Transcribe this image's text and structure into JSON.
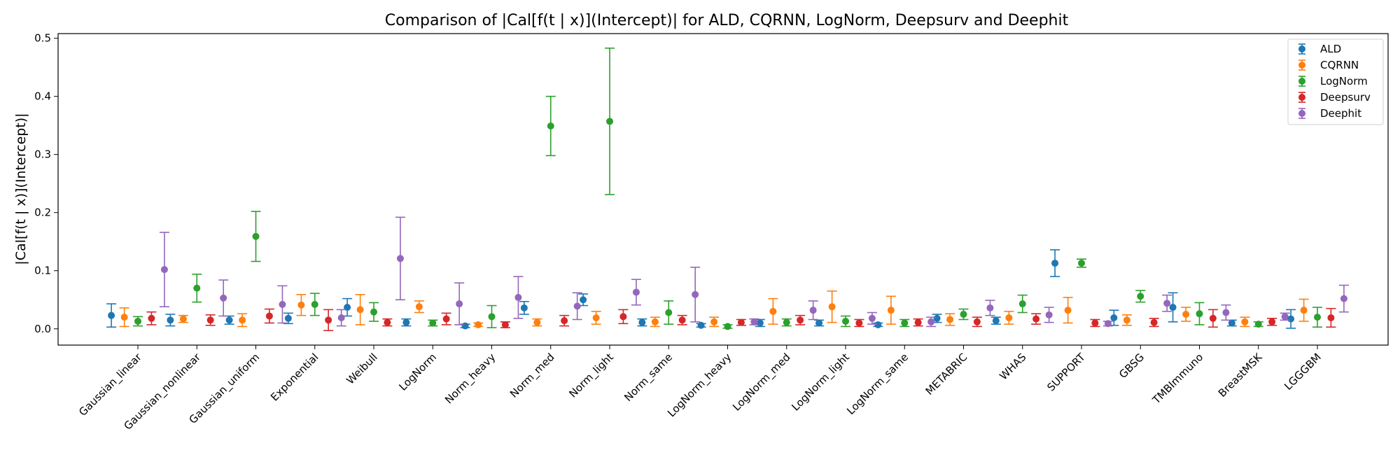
{
  "chart_data": {
    "type": "scatter",
    "title": "Comparison of |Cal[f(t | x)](Intercept)| for ALD, CQRNN, LogNorm, Deepsurv and Deephit",
    "xlabel": "",
    "ylabel": "|Cal[f(t | x)](Intercept)|",
    "ylim": [
      -0.028,
      0.508
    ],
    "yticks": [
      0.0,
      0.1,
      0.2,
      0.3,
      0.4,
      0.5
    ],
    "ytick_labels": [
      "0.0",
      "0.1",
      "0.2",
      "0.3",
      "0.4",
      "0.5"
    ],
    "grid": false,
    "legend_position": "top-right",
    "error_bars": true,
    "categories": [
      "Gaussian_linear",
      "Gaussian_nonlinear",
      "Gaussian_uniform",
      "Exponential",
      "Weibull",
      "LogNorm",
      "Norm_heavy",
      "Norm_med",
      "Norm_light",
      "Norm_same",
      "LogNorm_heavy",
      "LogNorm_med",
      "LogNorm_light",
      "LogNorm_same",
      "METABRIC",
      "WHAS",
      "SUPPORT",
      "GBSG",
      "TMBImmuno",
      "BreastMSK",
      "LGGGBM"
    ],
    "series": [
      {
        "name": "ALD",
        "color": "#1f77b4",
        "values": [
          0.023,
          0.015,
          0.015,
          0.018,
          0.037,
          0.011,
          0.005,
          0.036,
          0.05,
          0.011,
          0.006,
          0.01,
          0.01,
          0.007,
          0.018,
          0.014,
          0.113,
          0.019,
          0.037,
          0.01,
          0.017
        ],
        "errors": [
          0.02,
          0.01,
          0.007,
          0.009,
          0.015,
          0.006,
          0.003,
          0.011,
          0.01,
          0.006,
          0.003,
          0.006,
          0.005,
          0.003,
          0.007,
          0.006,
          0.023,
          0.013,
          0.025,
          0.005,
          0.016
        ]
      },
      {
        "name": "CQRNN",
        "color": "#ff7f0e",
        "values": [
          0.02,
          0.017,
          0.015,
          0.041,
          0.033,
          0.038,
          0.007,
          0.011,
          0.019,
          0.012,
          0.012,
          0.03,
          0.038,
          0.032,
          0.016,
          0.019,
          0.032,
          0.015,
          0.025,
          0.012,
          0.032
        ],
        "errors": [
          0.016,
          0.006,
          0.011,
          0.018,
          0.026,
          0.01,
          0.003,
          0.006,
          0.011,
          0.008,
          0.008,
          0.022,
          0.027,
          0.024,
          0.01,
          0.011,
          0.022,
          0.009,
          0.012,
          0.008,
          0.019
        ]
      },
      {
        "name": "LogNorm",
        "color": "#2ca02c",
        "values": [
          0.013,
          0.07,
          0.159,
          0.042,
          0.029,
          0.01,
          0.021,
          0.349,
          0.357,
          0.028,
          0.004,
          0.011,
          0.013,
          0.01,
          0.025,
          0.043,
          0.113,
          0.056,
          0.026,
          0.008,
          0.02
        ],
        "errors": [
          0.008,
          0.024,
          0.043,
          0.019,
          0.016,
          0.005,
          0.019,
          0.051,
          0.126,
          0.02,
          0.003,
          0.006,
          0.009,
          0.006,
          0.009,
          0.015,
          0.007,
          0.01,
          0.019,
          0.004,
          0.017
        ]
      },
      {
        "name": "Deepsurv",
        "color": "#d62728",
        "values": [
          0.018,
          0.015,
          0.022,
          0.015,
          0.011,
          0.017,
          0.007,
          0.014,
          0.021,
          0.015,
          0.011,
          0.015,
          0.01,
          0.011,
          0.012,
          0.017,
          0.01,
          0.011,
          0.018,
          0.012,
          0.019
        ],
        "errors": [
          0.011,
          0.009,
          0.012,
          0.018,
          0.006,
          0.01,
          0.005,
          0.009,
          0.012,
          0.008,
          0.005,
          0.008,
          0.006,
          0.006,
          0.008,
          0.009,
          0.006,
          0.007,
          0.015,
          0.006,
          0.016
        ]
      },
      {
        "name": "Deephit",
        "color": "#9467bd",
        "values": [
          0.102,
          0.053,
          0.042,
          0.019,
          0.121,
          0.043,
          0.054,
          0.039,
          0.063,
          0.059,
          0.012,
          0.032,
          0.018,
          0.012,
          0.036,
          0.024,
          0.009,
          0.044,
          0.028,
          0.021,
          0.052
        ],
        "errors": [
          0.064,
          0.031,
          0.032,
          0.014,
          0.071,
          0.036,
          0.036,
          0.023,
          0.022,
          0.047,
          0.005,
          0.016,
          0.01,
          0.008,
          0.013,
          0.013,
          0.004,
          0.014,
          0.013,
          0.006,
          0.023
        ]
      }
    ]
  }
}
